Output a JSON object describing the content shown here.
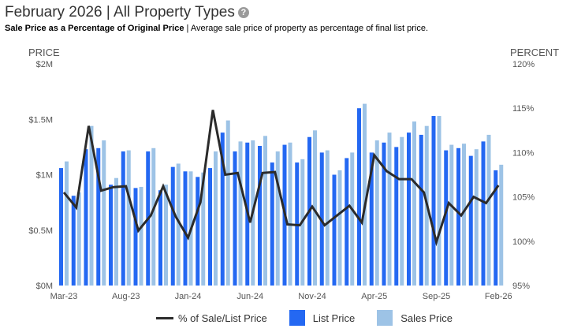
{
  "header": {
    "title": "February 2026 | All Property Types",
    "help_icon": "question-circle-icon",
    "subtitle_bold": "Sale Price as a Percentage of Original Price",
    "subtitle_rest": " | Average sale price of property as percentage of final list price."
  },
  "colors": {
    "list_price": "#2468f2",
    "sales_price": "#9dc3e6",
    "line": "#2b2b2b"
  },
  "chart_data": {
    "type": "bar",
    "title": "Sale Price as a Percentage of Original Price",
    "xlabel": "",
    "ylabel": "PRICE",
    "y2label": "PERCENT",
    "ylim": [
      0,
      2
    ],
    "y2lim": [
      95,
      120
    ],
    "yticks": [
      "$0M",
      "$0.5M",
      "$1M",
      "$1.5M",
      "$2M"
    ],
    "y2ticks": [
      "95%",
      "100%",
      "105%",
      "110%",
      "115%",
      "120%"
    ],
    "xtick_labels": [
      "Mar-23",
      "Aug-23",
      "Jan-24",
      "Jun-24",
      "Nov-24",
      "Apr-25",
      "Sep-25",
      "Feb-26"
    ],
    "xtick_every": 5,
    "grid": false,
    "legend_position": "bottom",
    "categories": [
      "Mar-23",
      "Apr-23",
      "May-23",
      "Jun-23",
      "Jul-23",
      "Aug-23",
      "Sep-23",
      "Oct-23",
      "Nov-23",
      "Dec-23",
      "Jan-24",
      "Feb-24",
      "Mar-24",
      "Apr-24",
      "May-24",
      "Jun-24",
      "Jul-24",
      "Aug-24",
      "Sep-24",
      "Oct-24",
      "Nov-24",
      "Dec-24",
      "Jan-25",
      "Feb-25",
      "Mar-25",
      "Apr-25",
      "May-25",
      "Jun-25",
      "Jul-25",
      "Aug-25",
      "Sep-25",
      "Oct-25",
      "Nov-25",
      "Dec-25",
      "Jan-26",
      "Feb-26"
    ],
    "series": [
      {
        "name": "List Price",
        "type": "bar",
        "axis": "left",
        "unit": "$M",
        "values": [
          1.06,
          0.81,
          1.23,
          1.24,
          0.91,
          1.21,
          0.88,
          1.21,
          0.86,
          1.07,
          1.03,
          0.98,
          1.06,
          1.38,
          1.21,
          1.29,
          1.26,
          1.11,
          1.27,
          1.11,
          1.34,
          1.2,
          1.0,
          1.15,
          1.6,
          1.2,
          1.29,
          1.25,
          1.38,
          1.36,
          1.53,
          1.22,
          1.24,
          1.17,
          1.3,
          1.04
        ]
      },
      {
        "name": "Sales Price",
        "type": "bar",
        "axis": "left",
        "unit": "$M",
        "values": [
          1.12,
          0.84,
          1.44,
          1.31,
          0.97,
          1.22,
          0.89,
          1.24,
          0.91,
          1.1,
          1.03,
          1.02,
          1.21,
          1.49,
          1.3,
          1.31,
          1.35,
          1.21,
          1.29,
          1.14,
          1.4,
          1.22,
          1.04,
          1.2,
          1.64,
          1.31,
          1.38,
          1.34,
          1.48,
          1.44,
          1.53,
          1.27,
          1.28,
          1.23,
          1.36,
          1.09
        ]
      },
      {
        "name": "% of Sale/List Price",
        "type": "line",
        "axis": "right",
        "unit": "%",
        "values": [
          105.5,
          103.8,
          113.0,
          105.7,
          106.1,
          106.2,
          101.2,
          102.9,
          106.2,
          102.8,
          100.4,
          104.4,
          114.8,
          107.5,
          107.7,
          102.1,
          107.7,
          107.8,
          101.9,
          101.8,
          103.9,
          101.8,
          102.9,
          104.0,
          102.1,
          109.7,
          107.9,
          107.0,
          107.0,
          105.5,
          99.9,
          104.3,
          102.9,
          105.0,
          104.3,
          106.3
        ]
      }
    ]
  },
  "legend": {
    "line_label": "% of Sale/List Price",
    "list_label": "List Price",
    "sales_label": "Sales Price"
  }
}
